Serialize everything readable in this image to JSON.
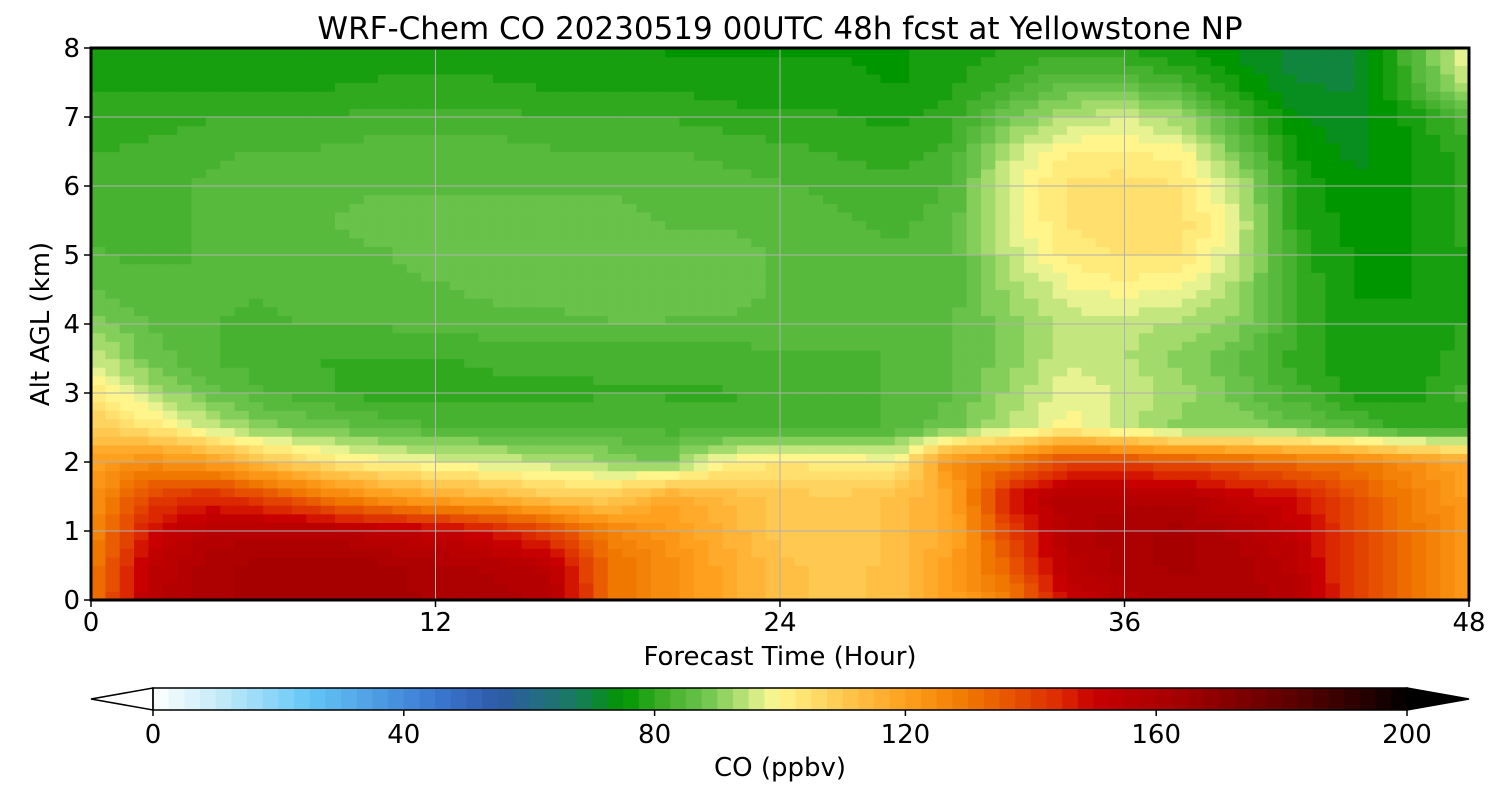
{
  "chart_data": {
    "type": "heatmap",
    "title": "WRF-Chem CO  20230519 00UTC 48h fcst at Yellowstone NP",
    "xlabel": "Forecast Time (Hour)",
    "ylabel": "Alt AGL (km)",
    "xlim": [
      0,
      48
    ],
    "ylim": [
      0,
      8
    ],
    "xticks": [
      0,
      12,
      24,
      36,
      48
    ],
    "xtick_labels": [
      "0",
      "12",
      "24",
      "36",
      "48"
    ],
    "yticks": [
      0,
      1,
      2,
      3,
      4,
      5,
      6,
      7,
      8
    ],
    "ytick_labels": [
      "0",
      "1",
      "2",
      "3",
      "4",
      "5",
      "6",
      "7",
      "8"
    ],
    "grid": true,
    "x": [
      0,
      2,
      4,
      6,
      8,
      10,
      12,
      14,
      16,
      18,
      20,
      22,
      24,
      26,
      28,
      30,
      32,
      34,
      36,
      38,
      40,
      42,
      44,
      46,
      48
    ],
    "y": [
      0,
      0.5,
      1,
      1.5,
      2,
      2.5,
      3,
      3.5,
      4,
      4.5,
      5,
      5.5,
      6,
      6.5,
      7,
      7.5,
      8
    ],
    "z": [
      [
        130,
        155,
        160,
        162,
        163,
        162,
        161,
        160,
        158,
        132,
        125,
        118,
        112,
        110,
        112,
        120,
        128,
        150,
        158,
        160,
        160,
        158,
        140,
        130,
        122
      ],
      [
        128,
        153,
        160,
        162,
        163,
        162,
        160,
        158,
        155,
        132,
        125,
        118,
        112,
        110,
        112,
        120,
        135,
        155,
        160,
        162,
        160,
        155,
        140,
        130,
        122
      ],
      [
        125,
        148,
        156,
        158,
        158,
        155,
        152,
        148,
        140,
        128,
        122,
        116,
        110,
        109,
        112,
        118,
        140,
        158,
        160,
        162,
        158,
        152,
        140,
        130,
        122
      ],
      [
        122,
        140,
        145,
        140,
        130,
        122,
        118,
        115,
        110,
        108,
        118,
        114,
        110,
        109,
        112,
        118,
        148,
        158,
        158,
        158,
        152,
        148,
        138,
        128,
        120
      ],
      [
        120,
        125,
        122,
        112,
        105,
        100,
        98,
        96,
        94,
        92,
        88,
        100,
        104,
        102,
        100,
        125,
        130,
        140,
        140,
        138,
        135,
        132,
        130,
        125,
        118
      ],
      [
        110,
        104,
        96,
        90,
        88,
        86,
        84,
        84,
        84,
        84,
        83,
        82,
        82,
        83,
        84,
        88,
        94,
        100,
        95,
        90,
        90,
        88,
        84,
        80,
        80
      ],
      [
        104,
        94,
        88,
        84,
        82,
        80,
        80,
        80,
        80,
        81,
        81,
        81,
        82,
        82,
        84,
        86,
        92,
        98,
        96,
        92,
        88,
        82,
        78,
        78,
        82
      ],
      [
        96,
        88,
        84,
        82,
        81,
        81,
        81,
        82,
        82,
        82,
        82,
        82,
        83,
        83,
        84,
        86,
        90,
        96,
        94,
        90,
        86,
        80,
        77,
        77,
        80
      ],
      [
        90,
        86,
        84,
        83,
        84,
        84,
        85,
        85,
        85,
        86,
        86,
        86,
        86,
        85,
        84,
        86,
        90,
        95,
        95,
        93,
        90,
        81,
        77,
        77,
        79
      ],
      [
        86,
        85,
        84,
        84,
        85,
        86,
        86,
        87,
        88,
        88,
        88,
        87,
        86,
        85,
        84,
        85,
        92,
        98,
        100,
        98,
        92,
        81,
        76,
        76,
        79
      ],
      [
        84,
        83,
        84,
        85,
        86,
        86,
        87,
        87,
        88,
        88,
        87,
        87,
        86,
        85,
        84,
        85,
        95,
        102,
        104,
        104,
        95,
        80,
        76,
        76,
        79
      ],
      [
        83,
        83,
        84,
        85,
        86,
        87,
        87,
        87,
        87,
        87,
        86,
        86,
        85,
        84,
        83,
        85,
        97,
        104,
        106,
        105,
        96,
        79,
        75,
        76,
        80
      ],
      [
        83,
        83,
        84,
        85,
        86,
        86,
        86,
        86,
        86,
        86,
        86,
        85,
        84,
        83,
        82,
        84,
        98,
        104,
        105,
        104,
        94,
        78,
        74,
        76,
        80
      ],
      [
        81,
        82,
        83,
        84,
        84,
        85,
        85,
        85,
        84,
        84,
        84,
        83,
        82,
        81,
        80,
        82,
        95,
        101,
        102,
        100,
        88,
        76,
        73,
        76,
        80
      ],
      [
        80,
        80,
        81,
        81,
        81,
        82,
        82,
        82,
        81,
        81,
        81,
        80,
        79,
        79,
        78,
        80,
        88,
        94,
        96,
        92,
        82,
        74,
        72,
        77,
        84
      ],
      [
        78,
        78,
        78,
        78,
        78,
        79,
        79,
        79,
        78,
        78,
        78,
        77,
        77,
        77,
        76,
        78,
        82,
        86,
        86,
        82,
        76,
        71,
        71,
        82,
        96
      ],
      [
        76,
        76,
        76,
        76,
        76,
        77,
        77,
        77,
        76,
        76,
        76,
        76,
        76,
        76,
        76,
        77,
        79,
        80,
        79,
        76,
        73,
        70,
        70,
        84,
        100
      ]
    ],
    "colorbar": {
      "label": "CO  (ppbv)",
      "orientation": "horizontal",
      "extend": "both",
      "min": 0,
      "max": 200,
      "ticks": [
        0,
        40,
        80,
        120,
        160,
        200
      ],
      "tick_labels": [
        "0",
        "40",
        "80",
        "120",
        "160",
        "200"
      ],
      "anchors": [
        {
          "v": 0,
          "c": "#ffffff"
        },
        {
          "v": 10,
          "c": "#c8ecf8"
        },
        {
          "v": 25,
          "c": "#64c6f6"
        },
        {
          "v": 45,
          "c": "#3a78d2"
        },
        {
          "v": 55,
          "c": "#2e5aa8"
        },
        {
          "v": 67,
          "c": "#1a7a62"
        },
        {
          "v": 75,
          "c": "#009600"
        },
        {
          "v": 82,
          "c": "#44b02c"
        },
        {
          "v": 88,
          "c": "#6cc44c"
        },
        {
          "v": 93,
          "c": "#a8dc70"
        },
        {
          "v": 98,
          "c": "#eef494"
        },
        {
          "v": 100,
          "c": "#fff58a"
        },
        {
          "v": 110,
          "c": "#ffc850"
        },
        {
          "v": 120,
          "c": "#ffa01e"
        },
        {
          "v": 130,
          "c": "#f07800"
        },
        {
          "v": 145,
          "c": "#dc2800"
        },
        {
          "v": 150,
          "c": "#c80000"
        },
        {
          "v": 165,
          "c": "#a00000"
        },
        {
          "v": 180,
          "c": "#640000"
        },
        {
          "v": 195,
          "c": "#1e0000"
        },
        {
          "v": 200,
          "c": "#000000"
        }
      ]
    }
  }
}
